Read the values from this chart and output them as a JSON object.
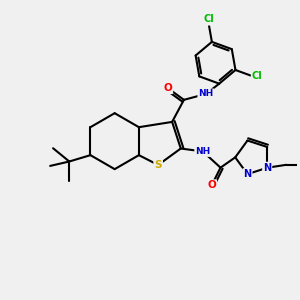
{
  "bg_color": "#f0f0f0",
  "atom_colors": {
    "C": "#000000",
    "N": "#0000cd",
    "O": "#ff0000",
    "S": "#ccaa00",
    "Cl": "#00bb00",
    "H": "#888888"
  },
  "bond_color": "#000000",
  "bond_width": 1.5
}
